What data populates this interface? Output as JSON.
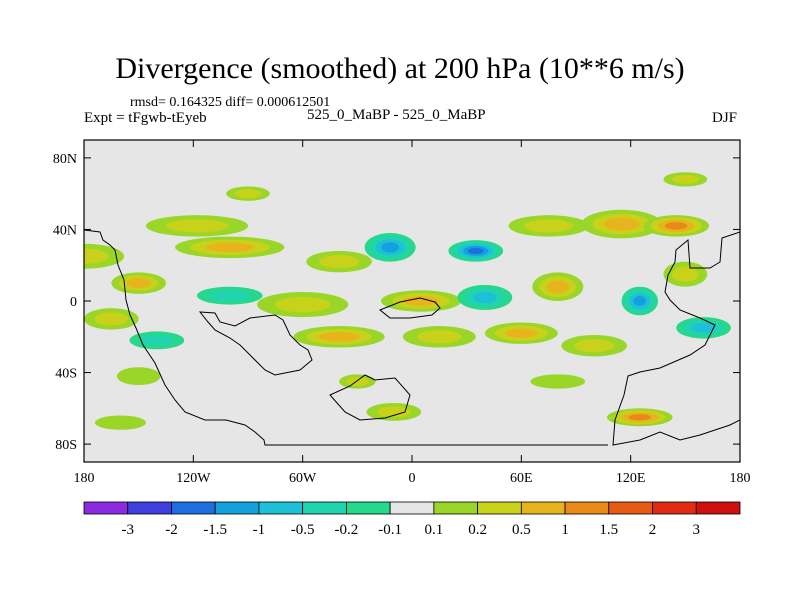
{
  "chart_data": {
    "type": "heatmap",
    "title": "Divergence (smoothed) at 200 hPa (10**6 m/s)",
    "rmsd_line": "rmsd= 0.164325 diff= 0.000612501",
    "expt_line": "Expt = tFgwb-tEyeb",
    "case_label": "525_0_MaBP - 525_0_MaBP",
    "season": "DJF",
    "xlabel": "",
    "ylabel": "",
    "xlim": [
      -180,
      180
    ],
    "ylim": [
      -90,
      90
    ],
    "x_ticks": [
      {
        "value": -180,
        "label": "180"
      },
      {
        "value": -120,
        "label": "120W"
      },
      {
        "value": -60,
        "label": "60W"
      },
      {
        "value": 0,
        "label": "0"
      },
      {
        "value": 60,
        "label": "60E"
      },
      {
        "value": 120,
        "label": "120E"
      },
      {
        "value": 180,
        "label": "180"
      }
    ],
    "y_ticks": [
      {
        "value": 80,
        "label": "80N"
      },
      {
        "value": 40,
        "label": "40N"
      },
      {
        "value": 0,
        "label": "0"
      },
      {
        "value": -40,
        "label": "40S"
      },
      {
        "value": -80,
        "label": "80S"
      }
    ],
    "colorbar": {
      "levels": [
        "-3",
        "-2",
        "-1.5",
        "-1",
        "-0.5",
        "-0.2",
        "-0.1",
        "0.1",
        "0.2",
        "0.5",
        "1",
        "1.5",
        "2",
        "3"
      ],
      "colors": [
        "#8a2be2",
        "#3f3fe0",
        "#1d6fe0",
        "#14a0de",
        "#1ec0d8",
        "#20d4b0",
        "#25d88c",
        "#e6e6e6",
        "#9ad628",
        "#c8d21a",
        "#e8b41e",
        "#e88a1a",
        "#e65a14",
        "#e02a14",
        "#d01010"
      ]
    },
    "features": [
      {
        "lon": -180,
        "lat": 25,
        "rx": 22,
        "ry": 7,
        "level": 9
      },
      {
        "lon": -150,
        "lat": 10,
        "rx": 15,
        "ry": 6,
        "level": 10
      },
      {
        "lon": -118,
        "lat": 42,
        "rx": 28,
        "ry": 6,
        "level": 9
      },
      {
        "lon": -100,
        "lat": 30,
        "rx": 30,
        "ry": 6,
        "level": 10
      },
      {
        "lon": -40,
        "lat": 22,
        "rx": 18,
        "ry": 6,
        "level": 9
      },
      {
        "lon": -12,
        "lat": 30,
        "rx": 14,
        "ry": 8,
        "level": 4
      },
      {
        "lon": 35,
        "lat": 28,
        "rx": 15,
        "ry": 6,
        "level": 3
      },
      {
        "lon": 75,
        "lat": 42,
        "rx": 22,
        "ry": 6,
        "level": 9
      },
      {
        "lon": 115,
        "lat": 43,
        "rx": 22,
        "ry": 8,
        "level": 10
      },
      {
        "lon": 145,
        "lat": 42,
        "rx": 18,
        "ry": 6,
        "level": 11
      },
      {
        "lon": 150,
        "lat": 68,
        "rx": 12,
        "ry": 4,
        "level": 9
      },
      {
        "lon": -90,
        "lat": 60,
        "rx": 12,
        "ry": 4,
        "level": 9
      },
      {
        "lon": 5,
        "lat": 0,
        "rx": 22,
        "ry": 6,
        "level": 10
      },
      {
        "lon": -60,
        "lat": -2,
        "rx": 25,
        "ry": 7,
        "level": 9
      },
      {
        "lon": -100,
        "lat": 3,
        "rx": 18,
        "ry": 5,
        "level": 6
      },
      {
        "lon": 40,
        "lat": 2,
        "rx": 15,
        "ry": 7,
        "level": 5
      },
      {
        "lon": 80,
        "lat": 8,
        "rx": 14,
        "ry": 8,
        "level": 10
      },
      {
        "lon": 150,
        "lat": 15,
        "rx": 12,
        "ry": 7,
        "level": 9
      },
      {
        "lon": 125,
        "lat": 0,
        "rx": 10,
        "ry": 8,
        "level": 4
      },
      {
        "lon": -165,
        "lat": -10,
        "rx": 15,
        "ry": 6,
        "level": 9
      },
      {
        "lon": -140,
        "lat": -22,
        "rx": 15,
        "ry": 5,
        "level": 6
      },
      {
        "lon": -40,
        "lat": -20,
        "rx": 25,
        "ry": 6,
        "level": 10
      },
      {
        "lon": 15,
        "lat": -20,
        "rx": 20,
        "ry": 6,
        "level": 9
      },
      {
        "lon": 60,
        "lat": -18,
        "rx": 20,
        "ry": 6,
        "level": 10
      },
      {
        "lon": 100,
        "lat": -25,
        "rx": 18,
        "ry": 6,
        "level": 9
      },
      {
        "lon": 160,
        "lat": -15,
        "rx": 15,
        "ry": 6,
        "level": 5
      },
      {
        "lon": -150,
        "lat": -42,
        "rx": 12,
        "ry": 5,
        "level": 8
      },
      {
        "lon": -30,
        "lat": -45,
        "rx": 10,
        "ry": 4,
        "level": 9
      },
      {
        "lon": 80,
        "lat": -45,
        "rx": 15,
        "ry": 4,
        "level": 8
      },
      {
        "lon": -160,
        "lat": -68,
        "rx": 14,
        "ry": 4,
        "level": 8
      },
      {
        "lon": -10,
        "lat": -62,
        "rx": 15,
        "ry": 5,
        "level": 9
      },
      {
        "lon": 125,
        "lat": -65,
        "rx": 18,
        "ry": 5,
        "level": 11
      }
    ]
  }
}
